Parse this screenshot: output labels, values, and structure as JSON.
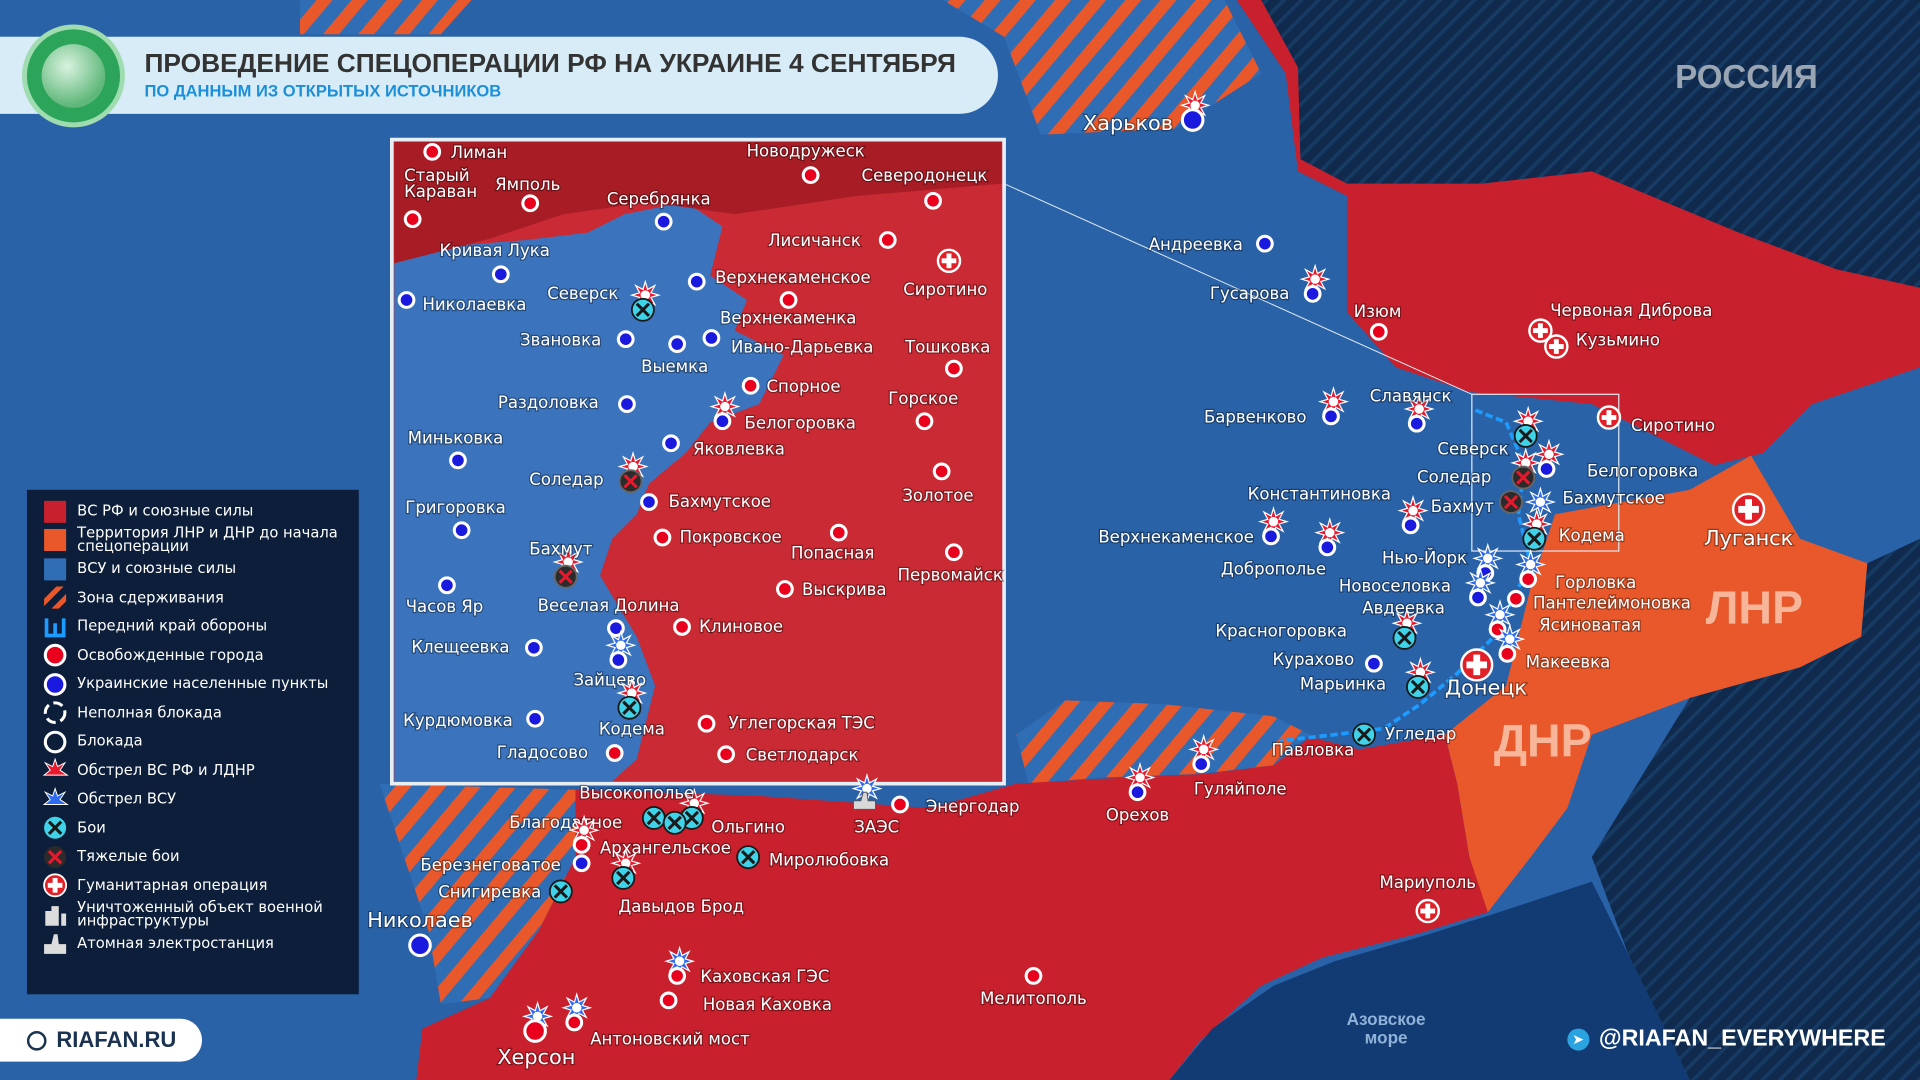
{
  "header": {
    "title": "ПРОВЕДЕНИЕ СПЕЦОПЕРАЦИИ РФ НА УКРАИНЕ 4 СЕНТЯБРЯ",
    "subtitle": "ПО ДАННЫМ ИЗ ОТКРЫТЫХ ИСТОЧНИКОВ",
    "logo_icon": "globe-europe-icon"
  },
  "regions": {
    "russia": "РОССИЯ",
    "lnr": "ЛНР",
    "dnr": "ДНР",
    "sea": "Азовское море"
  },
  "colors": {
    "rf_forces": "#c8202c",
    "lnr_dnr_prewar": "#e8582a",
    "afu_forces": "#2f6db5",
    "russia_territory": "#0f2a4d",
    "front_line": "#1e9bff",
    "liberated_city": "#e8001c",
    "ukrainian_town": "#1a1adf",
    "battle": "#3fd3ea"
  },
  "legend": [
    {
      "label": "ВС РФ и союзные силы",
      "icon": "red-square"
    },
    {
      "label": "Территория ЛНР и ДНР до начала спецоперации",
      "icon": "orange-square"
    },
    {
      "label": "ВСУ и союзные силы",
      "icon": "blue-square"
    },
    {
      "label": "Зона сдерживания",
      "icon": "hatch"
    },
    {
      "label": "Передний край обороны",
      "icon": "front-line"
    },
    {
      "label": "Освобожденные города",
      "icon": "red-dot"
    },
    {
      "label": "Украинские населенные пункты",
      "icon": "blue-dot"
    },
    {
      "label": "Неполная блокада",
      "icon": "dashed-ring"
    },
    {
      "label": "Блокада",
      "icon": "ring"
    },
    {
      "label": "Обстрел ВС РФ и ЛДНР",
      "icon": "red-shelling"
    },
    {
      "label": "Обстрел ВСУ",
      "icon": "blue-shelling"
    },
    {
      "label": "Бои",
      "icon": "battle"
    },
    {
      "label": "Тяжелые бои",
      "icon": "heavy-battle"
    },
    {
      "label": "Гуманитарная операция",
      "icon": "humanitarian"
    },
    {
      "label": "Уничтоженный объект военной инфраструктуры",
      "icon": "destroyed-object"
    },
    {
      "label": "Атомная электростанция",
      "icon": "npp"
    }
  ],
  "places": [
    {
      "name": "Харьков",
      "marker": "blue",
      "shell": "red",
      "big": true
    },
    {
      "name": "Андреевка",
      "marker": "blue"
    },
    {
      "name": "Гусарова",
      "marker": "blue",
      "shell": "red"
    },
    {
      "name": "Изюм",
      "marker": "red"
    },
    {
      "name": "Червоная Диброва",
      "marker": "hum"
    },
    {
      "name": "Кузьмино",
      "marker": "hum"
    },
    {
      "name": "Барвенково",
      "marker": "blue",
      "shell": "red"
    },
    {
      "name": "Славянск",
      "marker": "blue",
      "shell": "red"
    },
    {
      "name": "Сиротино",
      "marker": "hum"
    },
    {
      "name": "Северск",
      "marker": "battle",
      "shell": "red"
    },
    {
      "name": "Соледар",
      "marker": "heavy",
      "shell": "red"
    },
    {
      "name": "Бахмут",
      "marker": "heavy"
    },
    {
      "name": "Белогоровка",
      "marker": "blue",
      "shell": "red"
    },
    {
      "name": "Бахмутское",
      "marker": "none",
      "shell": "blue"
    },
    {
      "name": "Кодема",
      "marker": "battle",
      "shell": "red"
    },
    {
      "name": "Луганск",
      "marker": "hum",
      "big": true
    },
    {
      "name": "Константиновка",
      "marker": "blue",
      "shell": "red"
    },
    {
      "name": "Верхнекаменское",
      "marker": "blue",
      "shell": "red"
    },
    {
      "name": "Доброполье",
      "marker": "blue",
      "shell": "red"
    },
    {
      "name": "Нью-Йорк",
      "marker": "blue",
      "shell": "blue"
    },
    {
      "name": "Новоселовка",
      "marker": "none"
    },
    {
      "name": "Авдеевка",
      "marker": "blue",
      "shell": "blue"
    },
    {
      "name": "Горловка",
      "marker": "red",
      "shell": "blue"
    },
    {
      "name": "Пантелеймоновка",
      "marker": "red"
    },
    {
      "name": "Ясиноватая",
      "marker": "red",
      "shell": "blue"
    },
    {
      "name": "Макеевка",
      "marker": "red",
      "shell": "blue"
    },
    {
      "name": "Донецк",
      "marker": "hum",
      "big": true
    },
    {
      "name": "Красногоровка",
      "marker": "battle",
      "shell": "red"
    },
    {
      "name": "Курахово",
      "marker": "blue"
    },
    {
      "name": "Марьинка",
      "marker": "battle",
      "shell": "red"
    },
    {
      "name": "Угледар",
      "marker": "battle"
    },
    {
      "name": "Павловка",
      "marker": "none"
    },
    {
      "name": "Орехов",
      "marker": "blue",
      "shell": "red"
    },
    {
      "name": "Гуляйполе",
      "marker": "blue",
      "shell": "red"
    },
    {
      "name": "Мариуполь",
      "marker": "hum"
    },
    {
      "name": "Мелитополь",
      "marker": "red"
    },
    {
      "name": "Энергодар",
      "marker": "red"
    },
    {
      "name": "ЗАЭС",
      "marker": "npp",
      "shell": "blue"
    },
    {
      "name": "Ольгино",
      "marker": "battle",
      "shell": "red"
    },
    {
      "name": "Высокополье",
      "marker": "battle"
    },
    {
      "name": "Благодатное",
      "marker": "battle"
    },
    {
      "name": "Архангельское",
      "marker": "red",
      "shell": "red"
    },
    {
      "name": "Березнеговатое",
      "marker": "blue"
    },
    {
      "name": "Снигиревка",
      "marker": "battle"
    },
    {
      "name": "Давыдов Брод",
      "marker": "battle",
      "shell": "red"
    },
    {
      "name": "Миролюбовка",
      "marker": "battle"
    },
    {
      "name": "Николаев",
      "marker": "blue",
      "big": true
    },
    {
      "name": "Каховская ГЭС",
      "marker": "red",
      "shell": "blue"
    },
    {
      "name": "Новая Каховка",
      "marker": "red"
    },
    {
      "name": "Херсон",
      "marker": "red",
      "shell": "blue",
      "big": true
    },
    {
      "name": "Антоновский мост",
      "marker": "red",
      "shell": "blue"
    }
  ],
  "inset_places": [
    {
      "name": "Лиман",
      "marker": "red"
    },
    {
      "name": "Старый Караван",
      "marker": "red"
    },
    {
      "name": "Ямполь",
      "marker": "red"
    },
    {
      "name": "Серебрянка",
      "marker": "blue"
    },
    {
      "name": "Кривая Лука",
      "marker": "blue"
    },
    {
      "name": "Николаевка",
      "marker": "blue"
    },
    {
      "name": "Северск",
      "marker": "battle",
      "shell": "red"
    },
    {
      "name": "Звановка",
      "marker": "blue"
    },
    {
      "name": "Выемка",
      "marker": "blue"
    },
    {
      "name": "Верхнекаменское",
      "marker": "blue"
    },
    {
      "name": "Верхнекаменка",
      "marker": "red"
    },
    {
      "name": "Ивано-Дарьевка",
      "marker": "blue"
    },
    {
      "name": "Спорное",
      "marker": "red"
    },
    {
      "name": "Белогоровка",
      "marker": "blue",
      "shell": "red"
    },
    {
      "name": "Раздоловка",
      "marker": "blue"
    },
    {
      "name": "Миньковка",
      "marker": "blue"
    },
    {
      "name": "Яковлевка",
      "marker": "blue"
    },
    {
      "name": "Соледар",
      "marker": "heavy",
      "shell": "red"
    },
    {
      "name": "Бахмутское",
      "marker": "blue"
    },
    {
      "name": "Григоровка",
      "marker": "blue"
    },
    {
      "name": "Покровское",
      "marker": "red"
    },
    {
      "name": "Бахмут",
      "marker": "heavy",
      "shell": "red"
    },
    {
      "name": "Часов Яр",
      "marker": "blue"
    },
    {
      "name": "Веселая Долина",
      "marker": "blue"
    },
    {
      "name": "Клиновое",
      "marker": "red"
    },
    {
      "name": "Клещеевка",
      "marker": "blue"
    },
    {
      "name": "Зайцево",
      "marker": "blue",
      "shell": "blue"
    },
    {
      "name": "Курдюмовка",
      "marker": "blue"
    },
    {
      "name": "Кодема",
      "marker": "battle",
      "shell": "red"
    },
    {
      "name": "Гладосово",
      "marker": "red"
    },
    {
      "name": "Углегорская ТЭС",
      "marker": "red"
    },
    {
      "name": "Светлодарск",
      "marker": "red"
    },
    {
      "name": "Новодружеск",
      "marker": "red"
    },
    {
      "name": "Северодонецк",
      "marker": "red"
    },
    {
      "name": "Лисичанск",
      "marker": "red"
    },
    {
      "name": "Сиротино",
      "marker": "hum"
    },
    {
      "name": "Тошковка",
      "marker": "red"
    },
    {
      "name": "Горское",
      "marker": "red"
    },
    {
      "name": "Золотое",
      "marker": "red"
    },
    {
      "name": "Попасная",
      "marker": "red"
    },
    {
      "name": "Выскрива",
      "marker": "red"
    },
    {
      "name": "Первомайск",
      "marker": "red"
    }
  ],
  "footer": {
    "site": "RIAFAN.RU",
    "telegram": "@RIAFAN_EVERYWHERE",
    "telegram_icon": "telegram-icon"
  }
}
